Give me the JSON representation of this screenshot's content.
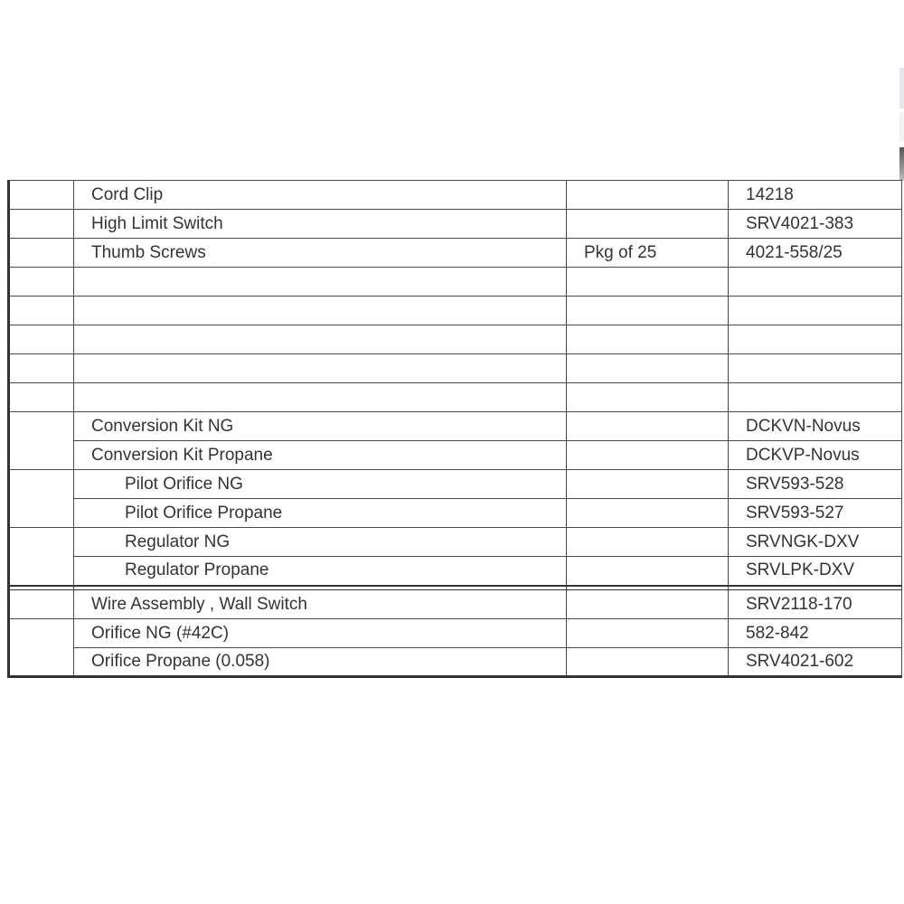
{
  "rows_top": [
    {
      "description": "Cord Clip",
      "qty": "",
      "part": "14218"
    },
    {
      "description": "High Limit Switch",
      "qty": "",
      "part": "SRV4021-383"
    },
    {
      "description": "Thumb Screws",
      "qty": "Pkg of 25",
      "part": "4021-558/25"
    },
    {
      "description": "",
      "qty": "",
      "part": ""
    },
    {
      "description": "",
      "qty": "",
      "part": ""
    },
    {
      "description": "",
      "qty": "",
      "part": ""
    },
    {
      "description": "",
      "qty": "",
      "part": ""
    },
    {
      "description": "",
      "qty": "",
      "part": ""
    }
  ],
  "rows_conversion": [
    {
      "description": "Conversion Kit NG",
      "qty": "",
      "part": "DCKVN-Novus"
    },
    {
      "description": "Conversion Kit Propane",
      "qty": "",
      "part": "DCKVP-Novus"
    },
    {
      "description": "Pilot Orifice NG",
      "qty": "",
      "part": "SRV593-528"
    },
    {
      "description": "Pilot Orifice Propane",
      "qty": "",
      "part": "SRV593-527"
    },
    {
      "description": "Regulator NG",
      "qty": "",
      "part": "SRVNGK-DXV"
    },
    {
      "description": "Regulator Propane",
      "qty": "",
      "part": "SRVLPK-DXV"
    }
  ],
  "rows_bottom": [
    {
      "description": "Wire Assembly , Wall Switch",
      "qty": "",
      "part": "SRV2118-170"
    },
    {
      "description": "Orifice NG (#42C)",
      "qty": "",
      "part": "582-842"
    },
    {
      "description": "Orifice Propane (0.058)",
      "qty": "",
      "part": "SRV4021-602"
    }
  ]
}
